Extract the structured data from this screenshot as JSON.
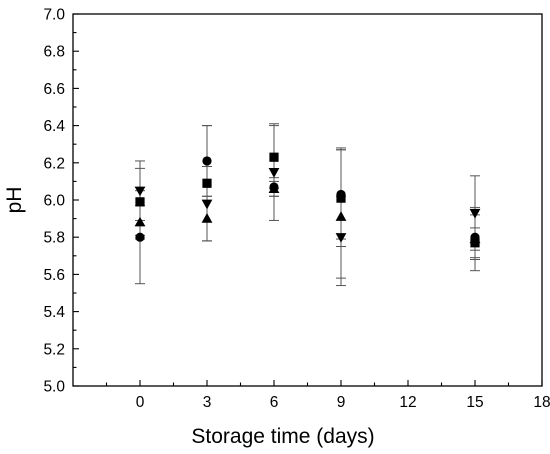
{
  "chart_data": {
    "type": "scatter",
    "title": "",
    "xlabel": "Storage time (days)",
    "ylabel": "pH",
    "xlim": [
      -3,
      18
    ],
    "ylim": [
      5.0,
      7.0
    ],
    "xticks": [
      0,
      3,
      6,
      9,
      12,
      15,
      18
    ],
    "yticks": [
      5.0,
      5.2,
      5.4,
      5.6,
      5.8,
      6.0,
      6.2,
      6.4,
      6.6,
      6.8,
      7.0
    ],
    "ytick_labels": [
      "5.0",
      "5.2",
      "5.4",
      "5.6",
      "5.8",
      "6.0",
      "6.2",
      "6.4",
      "6.6",
      "6.8",
      "7.0"
    ],
    "grid": false,
    "legend": "none",
    "series": [
      {
        "marker": "circle",
        "x": [
          0,
          3,
          6,
          9,
          15
        ],
        "y": [
          5.8,
          6.21,
          6.07,
          6.03,
          5.8
        ],
        "err": [
          0.25,
          0.19,
          0.05,
          0.24,
          0.12
        ]
      },
      {
        "marker": "square",
        "x": [
          0,
          3,
          6,
          9,
          15
        ],
        "y": [
          5.99,
          6.09,
          6.23,
          6.01,
          5.77
        ],
        "err": [
          0.18,
          0.31,
          0.17,
          0.26,
          0.08
        ]
      },
      {
        "marker": "triangle-up",
        "x": [
          0,
          3,
          6,
          9,
          15
        ],
        "y": [
          5.88,
          5.9,
          6.06,
          5.91,
          5.79
        ],
        "err": [
          0.09,
          0.12,
          0.04,
          0.37,
          0.17
        ]
      },
      {
        "marker": "triangle-down",
        "x": [
          0,
          3,
          6,
          9,
          15
        ],
        "y": [
          6.05,
          5.98,
          6.15,
          5.8,
          5.93
        ],
        "err": [
          0.16,
          0.2,
          0.26,
          0.22,
          0.2
        ]
      }
    ]
  }
}
